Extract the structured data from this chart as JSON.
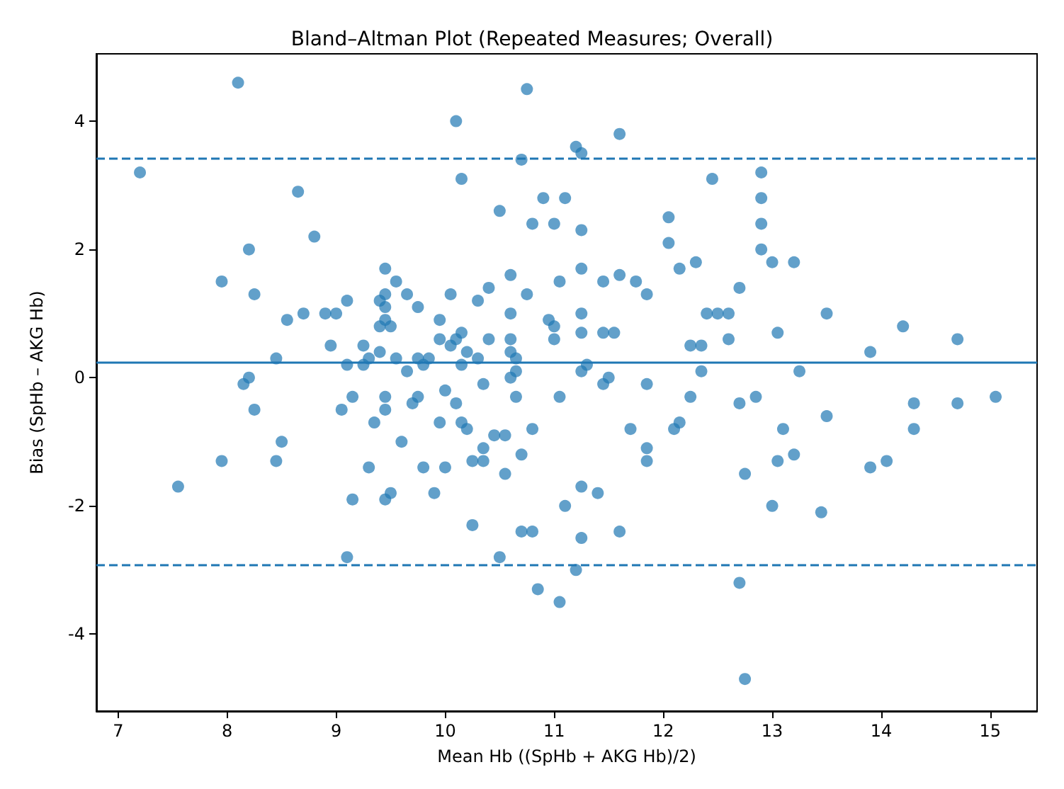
{
  "chart_data": {
    "type": "scatter",
    "title": "Bland–Altman Plot (Repeated Measures; Overall)",
    "xlabel": "Mean Hb ((SpHb + AKG Hb)/2)",
    "ylabel": "Bias (SpHb – AKG Hb)",
    "xlim": [
      6.8,
      15.43
    ],
    "ylim": [
      -5.2,
      5.05
    ],
    "xticks": [
      7,
      8,
      9,
      10,
      11,
      12,
      13,
      14,
      15
    ],
    "yticks": [
      -4,
      -2,
      0,
      2,
      4
    ],
    "grid": false,
    "marker": "circle",
    "ref_lines": [
      {
        "axis": "y",
        "value": 0.25,
        "line_style": "solid",
        "color": "#1f77b4"
      },
      {
        "axis": "y",
        "value": 3.42,
        "line_style": "dashed",
        "color": "#1f77b4"
      },
      {
        "axis": "y",
        "value": -2.92,
        "line_style": "dashed",
        "color": "#1f77b4"
      }
    ],
    "series": [
      {
        "color": "#1f77b4",
        "x": [
          7.2,
          7.55,
          7.95,
          7.95,
          8.1,
          8.15,
          8.2,
          8.2,
          8.25,
          8.25,
          8.45,
          8.45,
          8.5,
          8.55,
          8.65,
          8.7,
          8.8,
          8.9,
          8.95,
          9.0,
          9.05,
          9.1,
          9.1,
          9.1,
          9.15,
          9.15,
          9.25,
          9.25,
          9.3,
          9.3,
          9.35,
          9.4,
          9.4,
          9.4,
          9.45,
          9.45,
          9.45,
          9.45,
          9.45,
          9.45,
          9.45,
          9.5,
          9.5,
          9.55,
          9.55,
          9.6,
          9.65,
          9.65,
          9.7,
          9.75,
          9.75,
          9.75,
          9.8,
          9.8,
          9.85,
          9.9,
          9.95,
          9.95,
          9.95,
          10.0,
          10.0,
          10.05,
          10.05,
          10.1,
          10.1,
          10.1,
          10.15,
          10.15,
          10.15,
          10.15,
          10.2,
          10.2,
          10.25,
          10.25,
          10.3,
          10.3,
          10.35,
          10.35,
          10.35,
          10.4,
          10.4,
          10.45,
          10.5,
          10.5,
          10.55,
          10.55,
          10.6,
          10.6,
          10.6,
          10.6,
          10.6,
          10.65,
          10.65,
          10.65,
          10.7,
          10.7,
          10.7,
          10.75,
          10.75,
          10.8,
          10.8,
          10.8,
          10.85,
          10.9,
          10.95,
          11.0,
          11.0,
          11.0,
          11.05,
          11.05,
          11.05,
          11.1,
          11.1,
          11.2,
          11.2,
          11.25,
          11.25,
          11.25,
          11.25,
          11.25,
          11.25,
          11.25,
          11.25,
          11.3,
          11.4,
          11.45,
          11.45,
          11.45,
          11.5,
          11.55,
          11.6,
          11.6,
          11.6,
          11.7,
          11.75,
          11.85,
          11.85,
          11.85,
          11.85,
          12.05,
          12.05,
          12.1,
          12.15,
          12.15,
          12.25,
          12.25,
          12.3,
          12.35,
          12.35,
          12.4,
          12.45,
          12.5,
          12.6,
          12.6,
          12.7,
          12.7,
          12.7,
          12.75,
          12.75,
          12.85,
          12.9,
          12.9,
          12.9,
          12.9,
          13.0,
          13.0,
          13.05,
          13.05,
          13.1,
          13.2,
          13.2,
          13.25,
          13.45,
          13.5,
          13.5,
          13.9,
          13.9,
          14.05,
          14.2,
          14.3,
          14.3,
          14.7,
          14.7,
          15.05
        ],
        "values": [
          3.2,
          -1.7,
          1.5,
          -1.3,
          4.6,
          -0.1,
          0,
          2.0,
          1.3,
          -0.5,
          0.3,
          -1.3,
          -1.0,
          0.9,
          2.9,
          1.0,
          2.2,
          1.0,
          0.5,
          1.0,
          -0.5,
          1.2,
          0.2,
          -2.8,
          -1.9,
          -0.3,
          0.5,
          0.2,
          -1.4,
          0.3,
          -0.7,
          1.2,
          0.8,
          0.4,
          1.7,
          1.3,
          1.1,
          0.9,
          -0.3,
          -0.5,
          -1.9,
          0.8,
          -1.8,
          1.5,
          0.3,
          -1.0,
          1.3,
          0.1,
          -0.4,
          1.1,
          0.3,
          -0.3,
          0.2,
          -1.4,
          0.3,
          -1.8,
          0.9,
          0.6,
          -0.7,
          -0.2,
          -1.4,
          1.3,
          0.5,
          4.0,
          0.6,
          -0.4,
          3.1,
          0.7,
          0.2,
          -0.7,
          0.4,
          -0.8,
          -1.3,
          -2.3,
          1.2,
          0.3,
          -0.1,
          -1.1,
          -1.3,
          1.4,
          0.6,
          -0.9,
          2.6,
          -2.8,
          -0.9,
          -1.5,
          1.6,
          1.0,
          0.6,
          0.4,
          0.0,
          0.3,
          0.1,
          -0.3,
          3.4,
          -1.2,
          -2.4,
          4.5,
          1.3,
          2.4,
          -0.8,
          -2.4,
          -3.3,
          2.8,
          0.9,
          2.4,
          0.8,
          0.6,
          1.5,
          -0.3,
          -3.5,
          2.8,
          -2.0,
          3.6,
          -3.0,
          3.5,
          2.3,
          1.7,
          1.0,
          0.7,
          0.1,
          -1.7,
          -2.5,
          0.2,
          -1.8,
          1.5,
          0.7,
          -0.1,
          0.0,
          0.7,
          3.8,
          1.6,
          -2.4,
          -0.8,
          1.5,
          1.3,
          -0.1,
          -1.1,
          -1.3,
          2.5,
          2.1,
          -0.8,
          1.7,
          -0.7,
          0.5,
          -0.3,
          1.8,
          0.5,
          0.1,
          1.0,
          3.1,
          1.0,
          1.0,
          0.6,
          1.4,
          -0.4,
          -3.2,
          -1.5,
          -4.7,
          -0.3,
          3.2,
          2.8,
          2.4,
          2.0,
          1.8,
          -2.0,
          0.7,
          -1.3,
          -0.8,
          1.8,
          -1.2,
          0.1,
          -2.1,
          1.0,
          -0.6,
          0.4,
          -1.4,
          -1.3,
          0.8,
          -0.4,
          -0.8,
          0.6,
          -0.4,
          -0.3
        ]
      }
    ]
  }
}
